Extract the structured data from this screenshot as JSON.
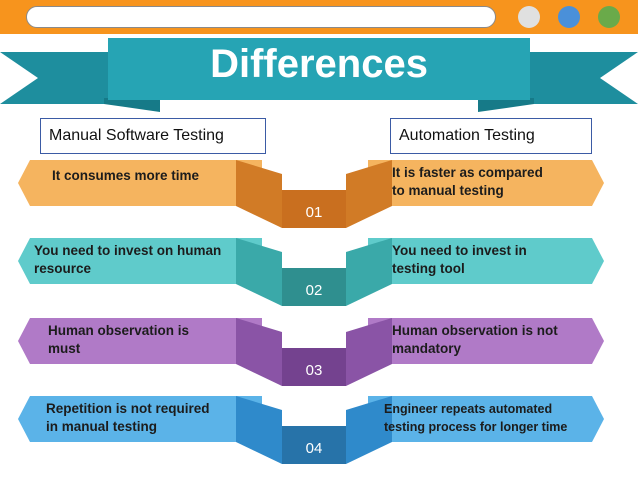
{
  "slide": {
    "title": "Differences",
    "left_header": "Manual Software Testing",
    "right_header": "Automation Testing",
    "dots": [
      "#e0e0e0",
      "#4a90d9",
      "#6aaa4a"
    ]
  },
  "rows": [
    {
      "number": "01",
      "left": [
        "It consumes more time"
      ],
      "right": [
        "It is faster as compared",
        "to manual testing"
      ],
      "colors": {
        "light": "#f5b45f",
        "dark": "#d17b26",
        "band": "#c96f1f"
      }
    },
    {
      "number": "02",
      "left": [
        "You need to invest on human",
        "resource"
      ],
      "right": [
        "You need to invest in",
        "testing tool"
      ],
      "colors": {
        "light": "#5fcbcb",
        "dark": "#3aa9a9",
        "band": "#2f8f8f"
      }
    },
    {
      "number": "03",
      "left": [
        "Human observation is",
        "must"
      ],
      "right": [
        "Human observation is not",
        "mandatory"
      ],
      "colors": {
        "light": "#b07ac7",
        "dark": "#8a54a6",
        "band": "#74428f"
      }
    },
    {
      "number": "04",
      "left": [
        "Repetition is not required",
        "in manual testing"
      ],
      "right": [
        "Engineer repeats automated",
        "testing process for longer time"
      ],
      "colors": {
        "light": "#5bb3e8",
        "dark": "#2f8acb",
        "band": "#2773a9"
      }
    }
  ]
}
